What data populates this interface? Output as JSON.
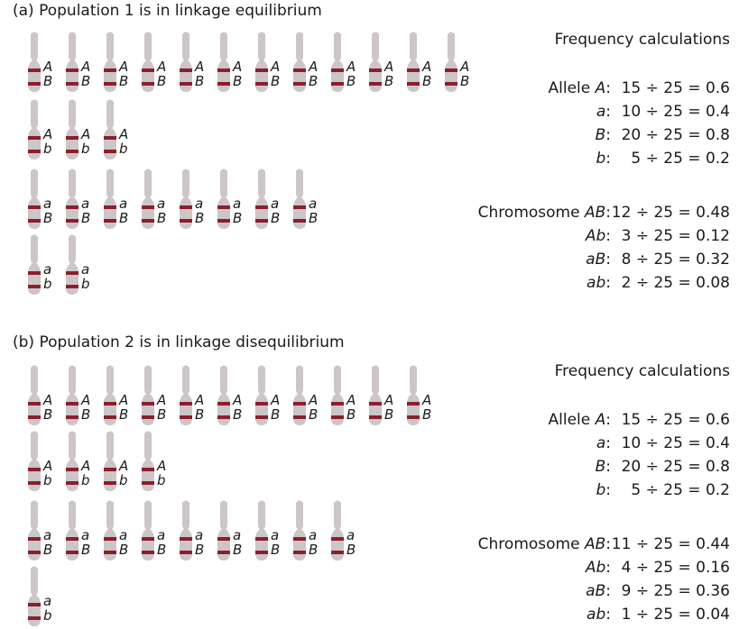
{
  "colors": {
    "chromosome": "#cdc6c8",
    "band": "#8b1f2b"
  },
  "panels": [
    {
      "id": "a",
      "title": "(a) Population 1 is in linkage equilibrium",
      "rows": [
        {
          "top": "A",
          "bottom": "B",
          "count": 12
        },
        {
          "top": "A",
          "bottom": "b",
          "count": 3
        },
        {
          "top": "a",
          "bottom": "B",
          "count": 8
        },
        {
          "top": "a",
          "bottom": "b",
          "count": 2
        }
      ],
      "calc_title": "Frequency calculations",
      "alleles": [
        {
          "prefix": "Allele ",
          "name": "A",
          "value": "15 ÷ 25 = 0.6"
        },
        {
          "prefix": "",
          "name": "a",
          "value": "10 ÷ 25 = 0.4"
        },
        {
          "prefix": "",
          "name": "B",
          "value": "20 ÷ 25 = 0.8"
        },
        {
          "prefix": "",
          "name": "b",
          "value": "5 ÷ 25 = 0.2"
        }
      ],
      "chromosomes": [
        {
          "prefix": "Chromosome ",
          "name": "AB",
          "value": "12 ÷ 25 = 0.48"
        },
        {
          "prefix": "",
          "name": "Ab",
          "value": "3 ÷ 25 = 0.12"
        },
        {
          "prefix": "",
          "name": "aB",
          "value": "8 ÷ 25 = 0.32"
        },
        {
          "prefix": "",
          "name": "ab",
          "value": "2 ÷ 25 = 0.08"
        }
      ]
    },
    {
      "id": "b",
      "title": "(b) Population 2 is in linkage disequilibrium",
      "rows": [
        {
          "top": "A",
          "bottom": "B",
          "count": 11
        },
        {
          "top": "A",
          "bottom": "b",
          "count": 4
        },
        {
          "top": "a",
          "bottom": "B",
          "count": 9
        },
        {
          "top": "a",
          "bottom": "b",
          "count": 1
        }
      ],
      "calc_title": "Frequency calculations",
      "alleles": [
        {
          "prefix": "Allele ",
          "name": "A",
          "value": "15 ÷ 25 = 0.6"
        },
        {
          "prefix": "",
          "name": "a",
          "value": "10 ÷ 25 = 0.4"
        },
        {
          "prefix": "",
          "name": "B",
          "value": "20 ÷ 25 = 0.8"
        },
        {
          "prefix": "",
          "name": "b",
          "value": "5 ÷ 25 = 0.2"
        }
      ],
      "chromosomes": [
        {
          "prefix": "Chromosome ",
          "name": "AB",
          "value": "11 ÷ 25 = 0.44"
        },
        {
          "prefix": "",
          "name": "Ab",
          "value": "4 ÷ 25 = 0.16"
        },
        {
          "prefix": "",
          "name": "aB",
          "value": "9 ÷ 25 = 0.36"
        },
        {
          "prefix": "",
          "name": "ab",
          "value": "1 ÷ 25 = 0.04"
        }
      ]
    }
  ]
}
